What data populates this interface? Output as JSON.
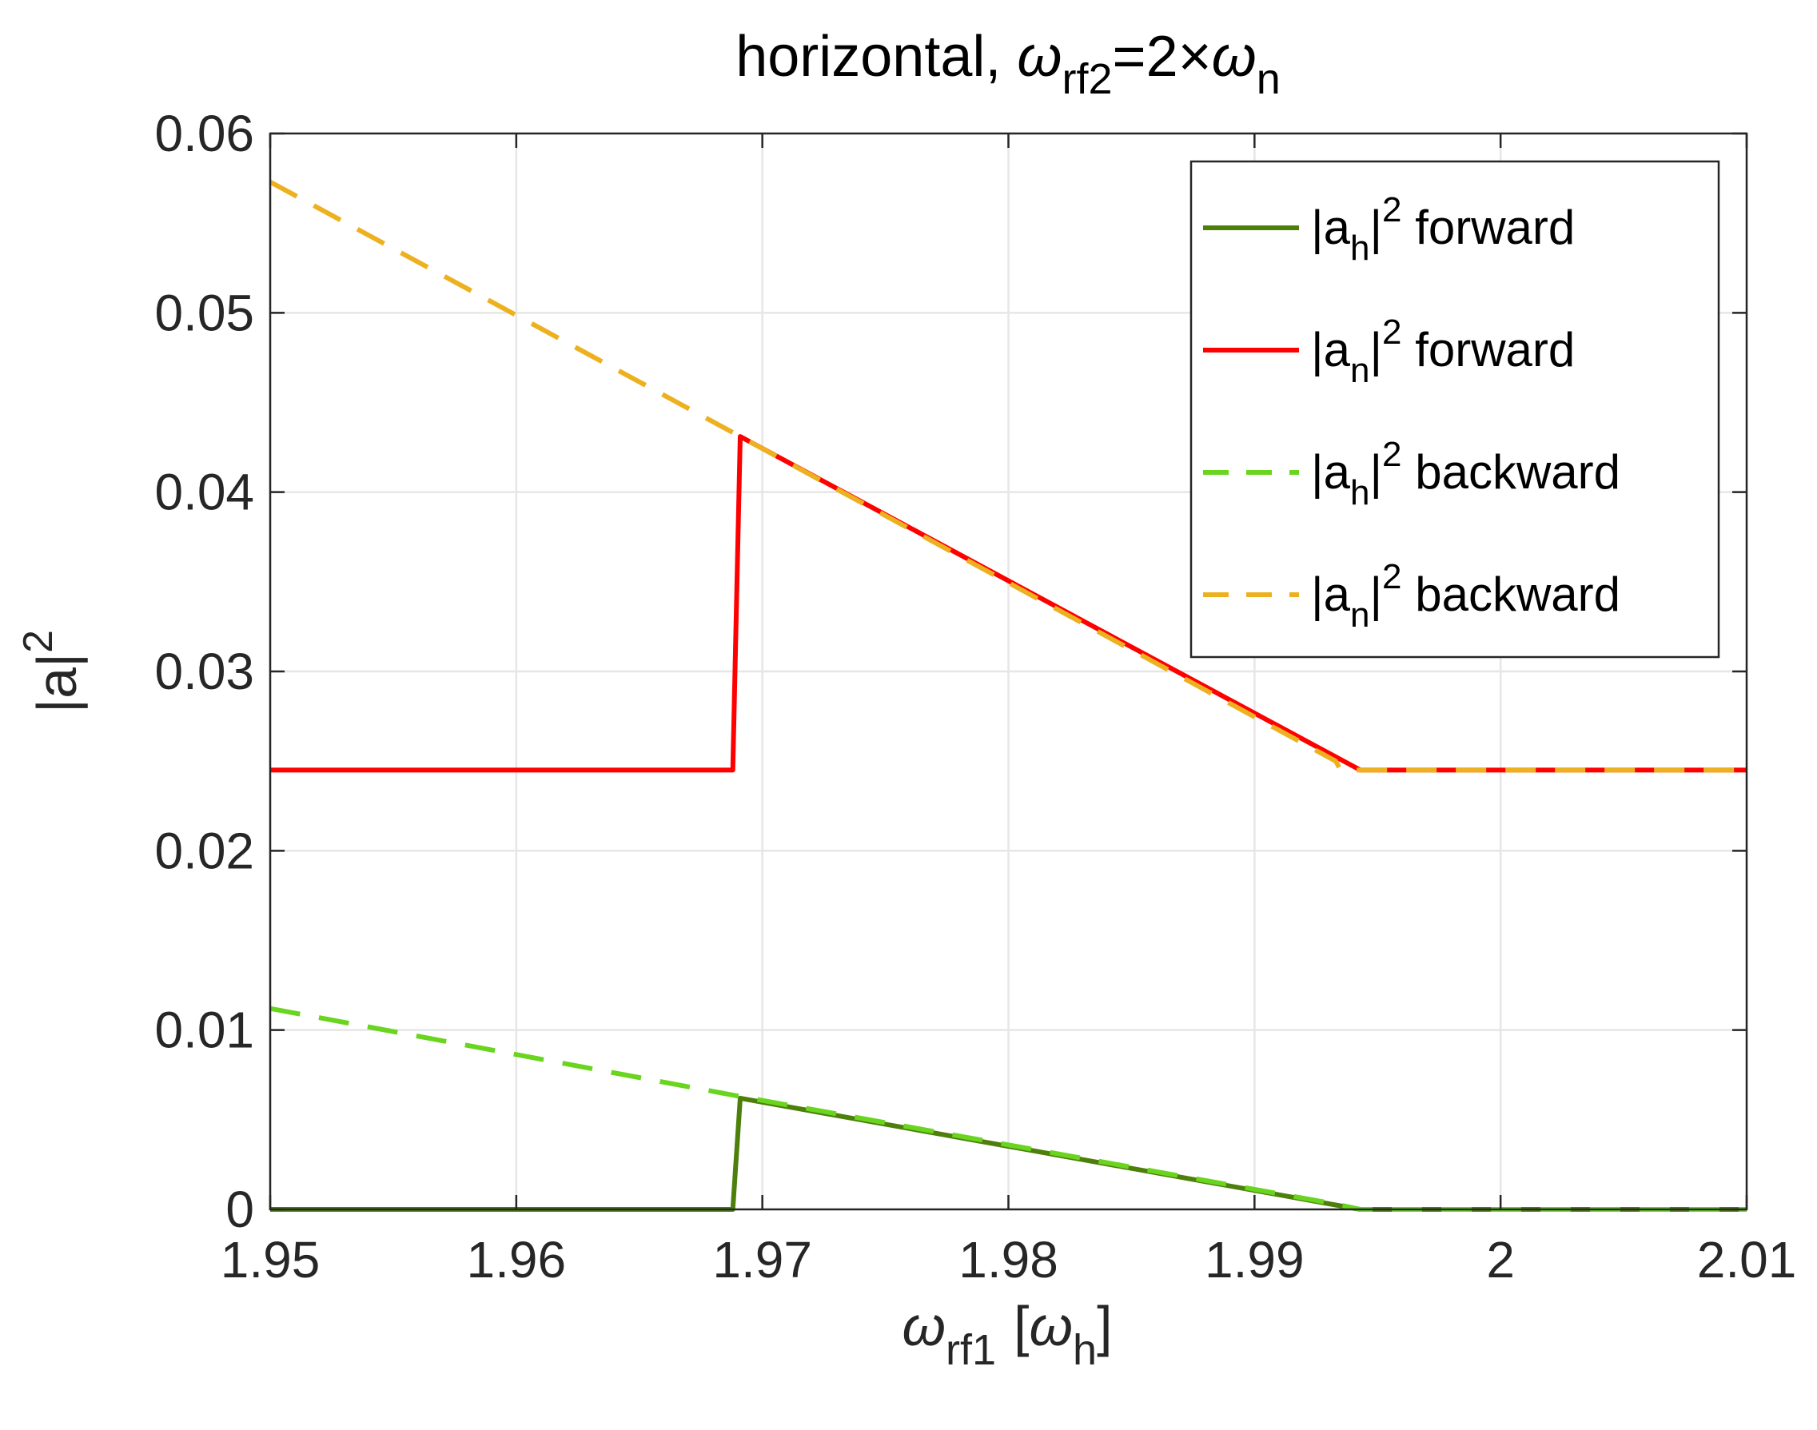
{
  "chart_data": {
    "type": "line",
    "title": {
      "main": "horizontal, ",
      "omega": "ω",
      "sub1": "rf2",
      "mid": "=2×",
      "omega2": "ω",
      "sub2": "n"
    },
    "xlabel": {
      "omega": "ω",
      "sub": "rf1",
      "open": "[",
      "omega2": "ω",
      "sub2": "h",
      "close": "]"
    },
    "ylabel": {
      "text": "|a|",
      "sup": "2"
    },
    "xlim": [
      1.95,
      2.01
    ],
    "ylim": [
      0,
      0.06
    ],
    "xticks": [
      1.95,
      1.96,
      1.97,
      1.98,
      1.99,
      2.0,
      2.01
    ],
    "xtick_labels": [
      "1.95",
      "1.96",
      "1.97",
      "1.98",
      "1.99",
      "2",
      "2.01"
    ],
    "yticks": [
      0,
      0.01,
      0.02,
      0.03,
      0.04,
      0.05,
      0.06
    ],
    "ytick_labels": [
      "0",
      "0.01",
      "0.02",
      "0.03",
      "0.04",
      "0.05",
      "0.06"
    ],
    "grid": true,
    "legend_position": "top-right",
    "series": [
      {
        "name": {
          "pre": "|a",
          "sub": "h",
          "mid": "|",
          "sup": "2",
          "post": " forward"
        },
        "color": "#4d7f0b",
        "dash": "solid",
        "x": [
          1.95,
          1.9688,
          1.9691,
          1.9943,
          2.01
        ],
        "y": [
          0,
          0,
          0.0062,
          0.0,
          0.0
        ]
      },
      {
        "name": {
          "pre": "|a",
          "sub": "n",
          "mid": "|",
          "sup": "2",
          "post": " forward"
        },
        "color": "#ff0000",
        "dash": "solid",
        "x": [
          1.95,
          1.9688,
          1.9691,
          1.9943,
          2.01
        ],
        "y": [
          0.0245,
          0.0245,
          0.0431,
          0.0245,
          0.0245
        ]
      },
      {
        "name": {
          "pre": "|a",
          "sub": "h",
          "mid": "|",
          "sup": "2",
          "post": " backward"
        },
        "color": "#6ad51f",
        "dash": "dashed",
        "x": [
          1.95,
          1.9691,
          1.9933,
          1.9943,
          2.01
        ],
        "y": [
          0.0112,
          0.0063,
          0.0003,
          0.0,
          0.0
        ]
      },
      {
        "name": {
          "pre": "|a",
          "sub": "n",
          "mid": "|",
          "sup": "2",
          "post": " backward"
        },
        "color": "#edb120",
        "dash": "dashed",
        "x": [
          1.95,
          1.9691,
          1.9933,
          1.9935,
          2.01
        ],
        "y": [
          0.0573,
          0.0431,
          0.025,
          0.0245,
          0.0245
        ]
      }
    ]
  }
}
